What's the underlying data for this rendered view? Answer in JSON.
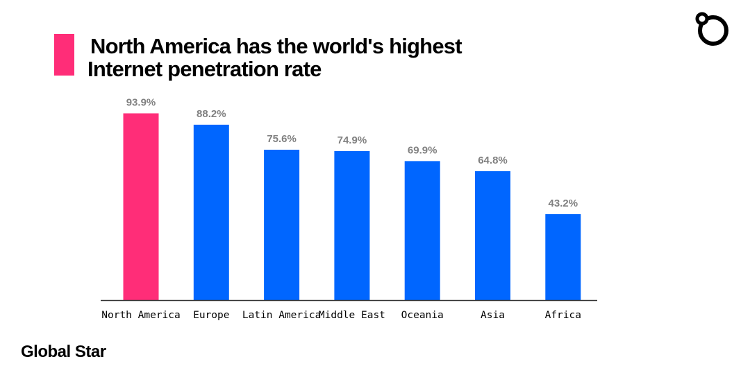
{
  "title_line1": "North America has the world's highest",
  "title_line2": "Internet penetration rate",
  "brand": "Global Star",
  "colors": {
    "accent": "#ff2d78",
    "bar": "#0066ff",
    "label": "#808080",
    "axis": "#333333"
  },
  "icons": {
    "logo": "circle-logo-icon"
  },
  "chart_data": {
    "type": "bar",
    "title": "North America has the world's highest Internet penetration rate",
    "categories": [
      "North America",
      "Europe",
      "Latin America",
      "Middle East",
      "Oceania",
      "Asia",
      "Africa"
    ],
    "values": [
      93.9,
      88.2,
      75.6,
      74.9,
      69.9,
      64.8,
      43.2
    ],
    "data_labels": [
      "93.9%",
      "88.2%",
      "75.6%",
      "74.9%",
      "69.9%",
      "64.8%",
      "43.2%"
    ],
    "highlight_index": 0,
    "ylim": [
      0,
      100
    ],
    "grid": false,
    "legend": "none"
  }
}
